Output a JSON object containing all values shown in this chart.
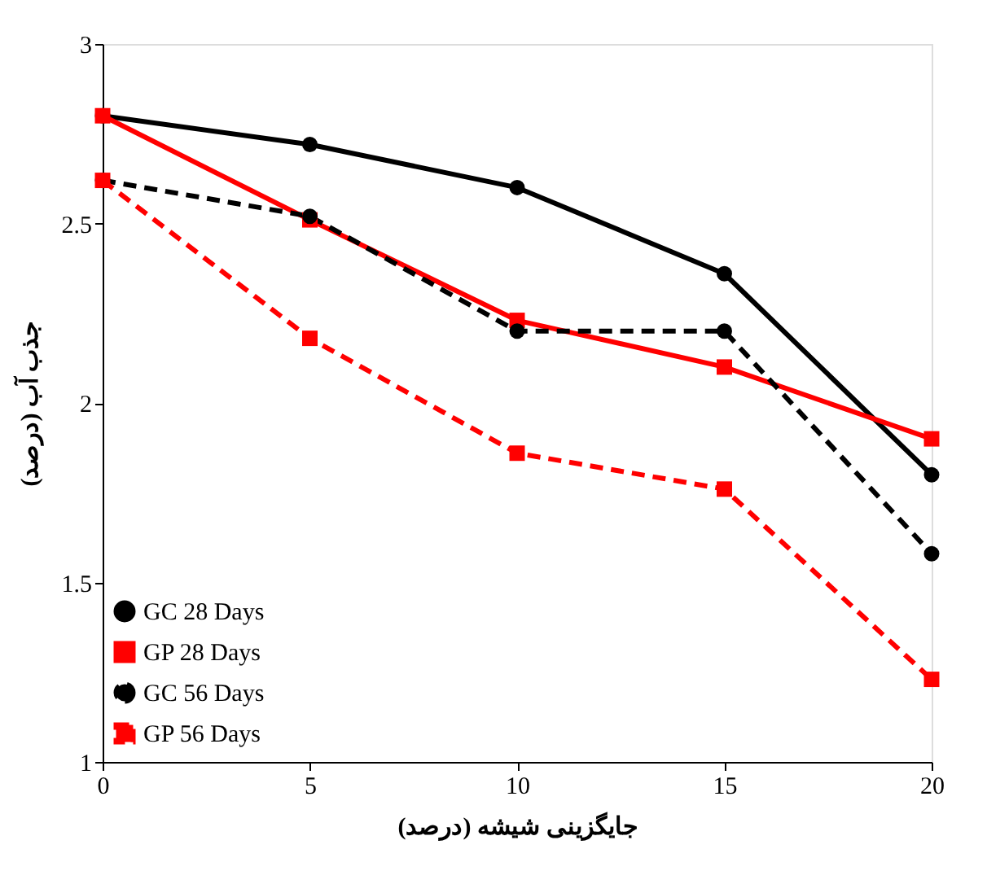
{
  "chart_data": {
    "type": "line",
    "xlabel": "جایگزینی شیشه (درصد)",
    "ylabel": "جذب آب (درصد)",
    "x": [
      0,
      5,
      10,
      15,
      20
    ],
    "series": [
      {
        "name": "GC 28 Days",
        "color": "#000000",
        "marker": "circle",
        "line_style": "solid",
        "values": [
          2.8,
          2.72,
          2.6,
          2.36,
          1.8
        ]
      },
      {
        "name": "GP 28 Days",
        "color": "#ff0000",
        "marker": "square",
        "line_style": "solid",
        "values": [
          2.8,
          2.51,
          2.23,
          2.1,
          1.9
        ]
      },
      {
        "name": "GC 56 Days",
        "color": "#000000",
        "marker": "circle",
        "line_style": "dashed",
        "values": [
          2.62,
          2.52,
          2.2,
          2.2,
          1.58
        ]
      },
      {
        "name": "GP 56 Days",
        "color": "#ff0000",
        "marker": "square",
        "line_style": "dashed",
        "values": [
          2.62,
          2.18,
          1.86,
          1.76,
          1.23
        ]
      }
    ],
    "xlim": [
      0,
      20
    ],
    "xticks": [
      0,
      5,
      10,
      15,
      20
    ],
    "ylim": [
      1,
      3
    ],
    "yticks": [
      {
        "value": 1,
        "label": "1"
      },
      1.5,
      {
        "value": 2,
        "label": "2"
      },
      2.5,
      {
        "value": 3,
        "label": "3"
      }
    ],
    "grid": false,
    "legend": "bottom left"
  }
}
